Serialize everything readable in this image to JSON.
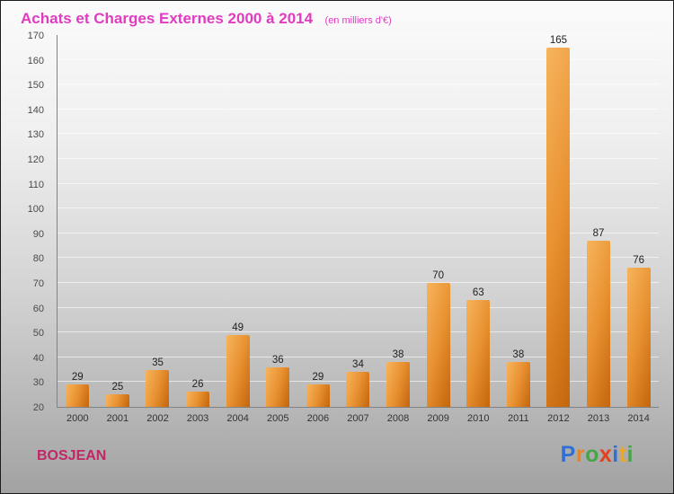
{
  "header": {
    "title": "Achats et Charges Externes 2000 à 2014",
    "subtitle": "(en milliers d'€)"
  },
  "footer": {
    "company": "BOSJEAN",
    "logo_letters": [
      {
        "char": "P",
        "color": "#2f6fd6"
      },
      {
        "char": "r",
        "color": "#ef8218"
      },
      {
        "char": "o",
        "color": "#46a546"
      },
      {
        "char": "x",
        "color": "#e2401f"
      },
      {
        "char": "i",
        "color": "#2f6fd6"
      },
      {
        "char": "t",
        "color": "#f0a818"
      },
      {
        "char": "i",
        "color": "#46a546"
      }
    ]
  },
  "colors": {
    "title": "#e03cc0",
    "company": "#c22667",
    "bar_light": "#f7b45c",
    "bar_mid": "#e89131",
    "bar_dark": "#c3650c"
  },
  "chart_data": {
    "type": "bar",
    "title": "Achats et Charges Externes 2000 à 2014",
    "subtitle": "(en milliers d'€)",
    "categories": [
      "2000",
      "2001",
      "2002",
      "2003",
      "2004",
      "2005",
      "2006",
      "2007",
      "2008",
      "2009",
      "2010",
      "2011",
      "2012",
      "2013",
      "2014"
    ],
    "values": [
      29,
      25,
      35,
      26,
      49,
      36,
      29,
      34,
      38,
      70,
      63,
      38,
      165,
      87,
      76
    ],
    "xlabel": "",
    "ylabel": "",
    "ylim": [
      20,
      170
    ],
    "ytick": 10,
    "ytick_labels": [
      "20",
      "30",
      "40",
      "50",
      "60",
      "70",
      "80",
      "90",
      "100",
      "110",
      "120",
      "130",
      "140",
      "150",
      "160",
      "170"
    ],
    "grid": true,
    "legend": false
  }
}
